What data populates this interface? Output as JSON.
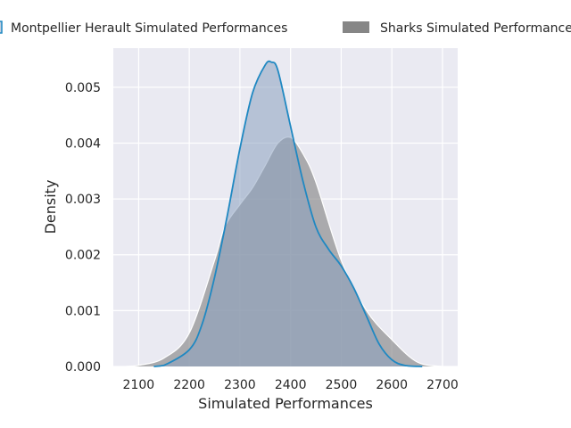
{
  "chart_data": {
    "type": "area",
    "title": "",
    "xlabel": "Simulated Performances",
    "ylabel": "Density",
    "xlim": [
      2050,
      2730
    ],
    "ylim": [
      0,
      0.0057
    ],
    "grid": true,
    "legend_placement": "top",
    "x_ticks": [
      "2100",
      "2200",
      "2300",
      "2400",
      "2500",
      "2600",
      "2700"
    ],
    "y_ticks": [
      "0.000",
      "0.001",
      "0.002",
      "0.003",
      "0.004",
      "0.005"
    ],
    "x_tick_values": [
      2100,
      2200,
      2300,
      2400,
      2500,
      2600,
      2700
    ],
    "y_tick_values": [
      0,
      0.001,
      0.002,
      0.003,
      0.004,
      0.005
    ],
    "series": [
      {
        "name": "Sharks Simulated Performances",
        "color": "#7f7f7f",
        "line_color": "#ffffff",
        "fill_opacity": 0.6,
        "x": [
          2075,
          2100,
          2150,
          2200,
          2250,
          2270,
          2300,
          2325,
          2350,
          2375,
          2400,
          2425,
          2450,
          2500,
          2550,
          2600,
          2650,
          2700
        ],
        "y": [
          0.0,
          2e-05,
          0.00015,
          0.0006,
          0.0019,
          0.0025,
          0.0029,
          0.0032,
          0.0036,
          0.004,
          0.0041,
          0.0038,
          0.0033,
          0.0019,
          0.001,
          0.00048,
          8e-05,
          0.0
        ]
      },
      {
        "name": "Montpellier Herault Simulated Performances",
        "color": "#8aa0c0",
        "line_color": "#1f88c2",
        "fill_opacity": 0.55,
        "x": [
          2130,
          2150,
          2200,
          2225,
          2250,
          2275,
          2300,
          2325,
          2350,
          2362,
          2375,
          2400,
          2425,
          2450,
          2475,
          2500,
          2525,
          2550,
          2575,
          2600,
          2625,
          2660
        ],
        "y": [
          0.0,
          2e-05,
          0.0003,
          0.00075,
          0.0016,
          0.0027,
          0.0039,
          0.0049,
          0.0054,
          0.00545,
          0.0053,
          0.0043,
          0.0033,
          0.0025,
          0.0021,
          0.0018,
          0.0014,
          0.0009,
          0.0004,
          0.00012,
          2e-05,
          0.0
        ]
      }
    ]
  }
}
